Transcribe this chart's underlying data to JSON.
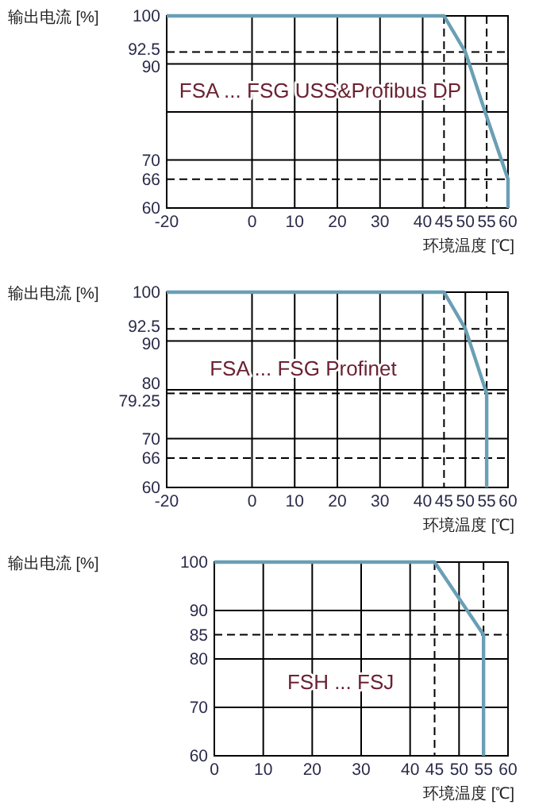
{
  "chart_data": [
    {
      "type": "line",
      "ylabel": "输出电流 [%]",
      "xlabel": "环境温度 [℃]",
      "annotations": [
        "FSA ... FSG USS&Profibus DP"
      ],
      "xlim": [
        -20,
        60
      ],
      "ylim": [
        60,
        100
      ],
      "xticks": [
        -20,
        0,
        10,
        20,
        30,
        40,
        50,
        60
      ],
      "yticks": [
        60,
        70,
        {
          "value": 80,
          "label": null
        },
        90,
        100
      ],
      "grid": true,
      "marker": "none",
      "line_style": "solid",
      "series": [
        {
          "color": "#6a9fb5",
          "x": [
            -20,
            45,
            50,
            55,
            60,
            60
          ],
          "values": [
            100,
            100,
            92.5,
            79,
            66,
            60
          ]
        }
      ],
      "ref_lines": [
        {
          "axis": "y",
          "value": 92.5,
          "label": "92.5",
          "line_style": "dashed",
          "color": "#000000"
        },
        {
          "axis": "y",
          "value": 66,
          "label": "66",
          "line_style": "dashed",
          "color": "#000000"
        },
        {
          "axis": "x",
          "value": 45,
          "label": "45",
          "line_style": "dashed",
          "color": "#000000"
        },
        {
          "axis": "x",
          "value": 55,
          "label": "55",
          "line_style": "dashed",
          "color": "#000000"
        }
      ]
    },
    {
      "type": "line",
      "ylabel": "输出电流 [%]",
      "xlabel": "环境温度 [℃]",
      "annotations": [
        "FSA ... FSG Profinet"
      ],
      "xlim": [
        -20,
        60
      ],
      "ylim": [
        60,
        100
      ],
      "xticks": [
        -20,
        0,
        10,
        20,
        30,
        40,
        50,
        60
      ],
      "yticks": [
        60,
        70,
        80,
        90,
        100
      ],
      "grid": true,
      "marker": "none",
      "line_style": "solid",
      "series": [
        {
          "color": "#6a9fb5",
          "x": [
            -20,
            45,
            50,
            55,
            55
          ],
          "values": [
            100,
            100,
            92.5,
            79.25,
            60
          ]
        }
      ],
      "ref_lines": [
        {
          "axis": "y",
          "value": 92.5,
          "label": "92.5",
          "line_style": "dashed",
          "color": "#000000"
        },
        {
          "axis": "y",
          "value": 79.25,
          "label": "79.25",
          "line_style": "dashed",
          "color": "#000000"
        },
        {
          "axis": "y",
          "value": 66,
          "label": "66",
          "line_style": "dashed",
          "color": "#000000"
        },
        {
          "axis": "x",
          "value": 45,
          "label": "45",
          "line_style": "dashed",
          "color": "#000000"
        },
        {
          "axis": "x",
          "value": 55,
          "label": "55",
          "line_style": "dashed",
          "color": "#000000"
        }
      ]
    },
    {
      "type": "line",
      "ylabel": "输出电流 [%]",
      "xlabel": "环境温度 [℃]",
      "annotations": [
        "FSH ... FSJ"
      ],
      "xlim": [
        0,
        60
      ],
      "ylim": [
        60,
        100
      ],
      "xticks": [
        0,
        10,
        20,
        30,
        40,
        50,
        60
      ],
      "yticks": [
        60,
        70,
        80,
        90,
        100
      ],
      "grid": true,
      "marker": "none",
      "line_style": "solid",
      "series": [
        {
          "color": "#6a9fb5",
          "x": [
            0,
            45,
            55,
            55
          ],
          "values": [
            100,
            100,
            85,
            60
          ]
        }
      ],
      "ref_lines": [
        {
          "axis": "y",
          "value": 85,
          "label": "85",
          "line_style": "dashed",
          "color": "#000000"
        },
        {
          "axis": "x",
          "value": 45,
          "label": "45",
          "line_style": "dashed",
          "color": "#000000"
        },
        {
          "axis": "x",
          "value": 55,
          "label": "55",
          "line_style": "dashed",
          "color": "#000000"
        }
      ]
    }
  ]
}
